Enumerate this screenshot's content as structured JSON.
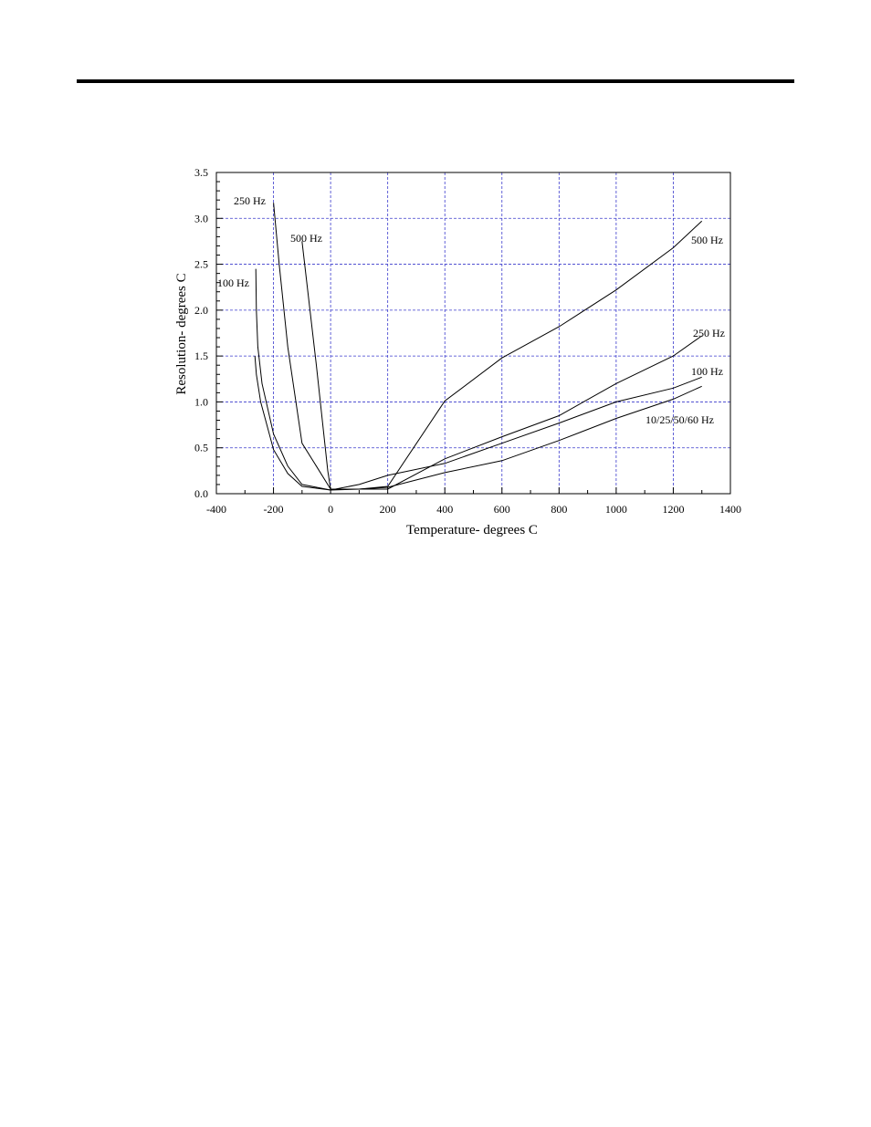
{
  "chart_data": {
    "type": "line",
    "xlabel": "Temperature- degrees C",
    "ylabel": "Resolution- degrees C",
    "xlim": [
      -400,
      1400
    ],
    "ylim": [
      0.0,
      3.5
    ],
    "xticks": [
      -400,
      -200,
      0,
      200,
      400,
      600,
      800,
      1000,
      1200,
      1400
    ],
    "yticks": [
      "0.0",
      "0.5",
      "1.0",
      "1.5",
      "2.0",
      "2.5",
      "3.0",
      "3.5"
    ],
    "grid": true,
    "series": [
      {
        "name": "500 Hz",
        "points": [
          [
            -100,
            2.75
          ],
          [
            -50,
            1.4
          ],
          [
            -10,
            0.25
          ],
          [
            0,
            0.05
          ],
          [
            100,
            0.05
          ],
          [
            200,
            0.08
          ],
          [
            400,
            1.01
          ],
          [
            600,
            1.48
          ],
          [
            800,
            1.82
          ],
          [
            1000,
            2.22
          ],
          [
            1200,
            2.68
          ],
          [
            1300,
            2.97
          ]
        ]
      },
      {
        "name": "250 Hz",
        "points": [
          [
            -200,
            3.17
          ],
          [
            -180,
            2.5
          ],
          [
            -150,
            1.6
          ],
          [
            -100,
            0.55
          ],
          [
            -50,
            0.3
          ],
          [
            0,
            0.05
          ],
          [
            100,
            0.05
          ],
          [
            200,
            0.05
          ],
          [
            400,
            0.38
          ],
          [
            600,
            0.62
          ],
          [
            800,
            0.85
          ],
          [
            1000,
            1.2
          ],
          [
            1200,
            1.5
          ],
          [
            1300,
            1.72
          ]
        ]
      },
      {
        "name": "100 Hz",
        "points": [
          [
            -262,
            2.45
          ],
          [
            -260,
            2.0
          ],
          [
            -255,
            1.6
          ],
          [
            -240,
            1.2
          ],
          [
            -200,
            0.65
          ],
          [
            -150,
            0.3
          ],
          [
            -100,
            0.1
          ],
          [
            0,
            0.04
          ],
          [
            100,
            0.1
          ],
          [
            200,
            0.2
          ],
          [
            400,
            0.33
          ],
          [
            600,
            0.55
          ],
          [
            800,
            0.77
          ],
          [
            1000,
            1.0
          ],
          [
            1200,
            1.15
          ],
          [
            1300,
            1.27
          ]
        ]
      },
      {
        "name": "10/25/50/60 Hz",
        "points": [
          [
            -265,
            1.5
          ],
          [
            -260,
            1.3
          ],
          [
            -245,
            1.0
          ],
          [
            -200,
            0.48
          ],
          [
            -150,
            0.22
          ],
          [
            -100,
            0.08
          ],
          [
            0,
            0.04
          ],
          [
            100,
            0.05
          ],
          [
            200,
            0.07
          ],
          [
            400,
            0.23
          ],
          [
            600,
            0.36
          ],
          [
            800,
            0.58
          ],
          [
            1000,
            0.82
          ],
          [
            1200,
            1.03
          ],
          [
            1300,
            1.17
          ]
        ]
      }
    ],
    "annotations": [
      "250 Hz",
      "500 Hz",
      "100 Hz",
      "500 Hz",
      "250 Hz",
      "100 Hz",
      "10/25/50/60 Hz"
    ]
  }
}
